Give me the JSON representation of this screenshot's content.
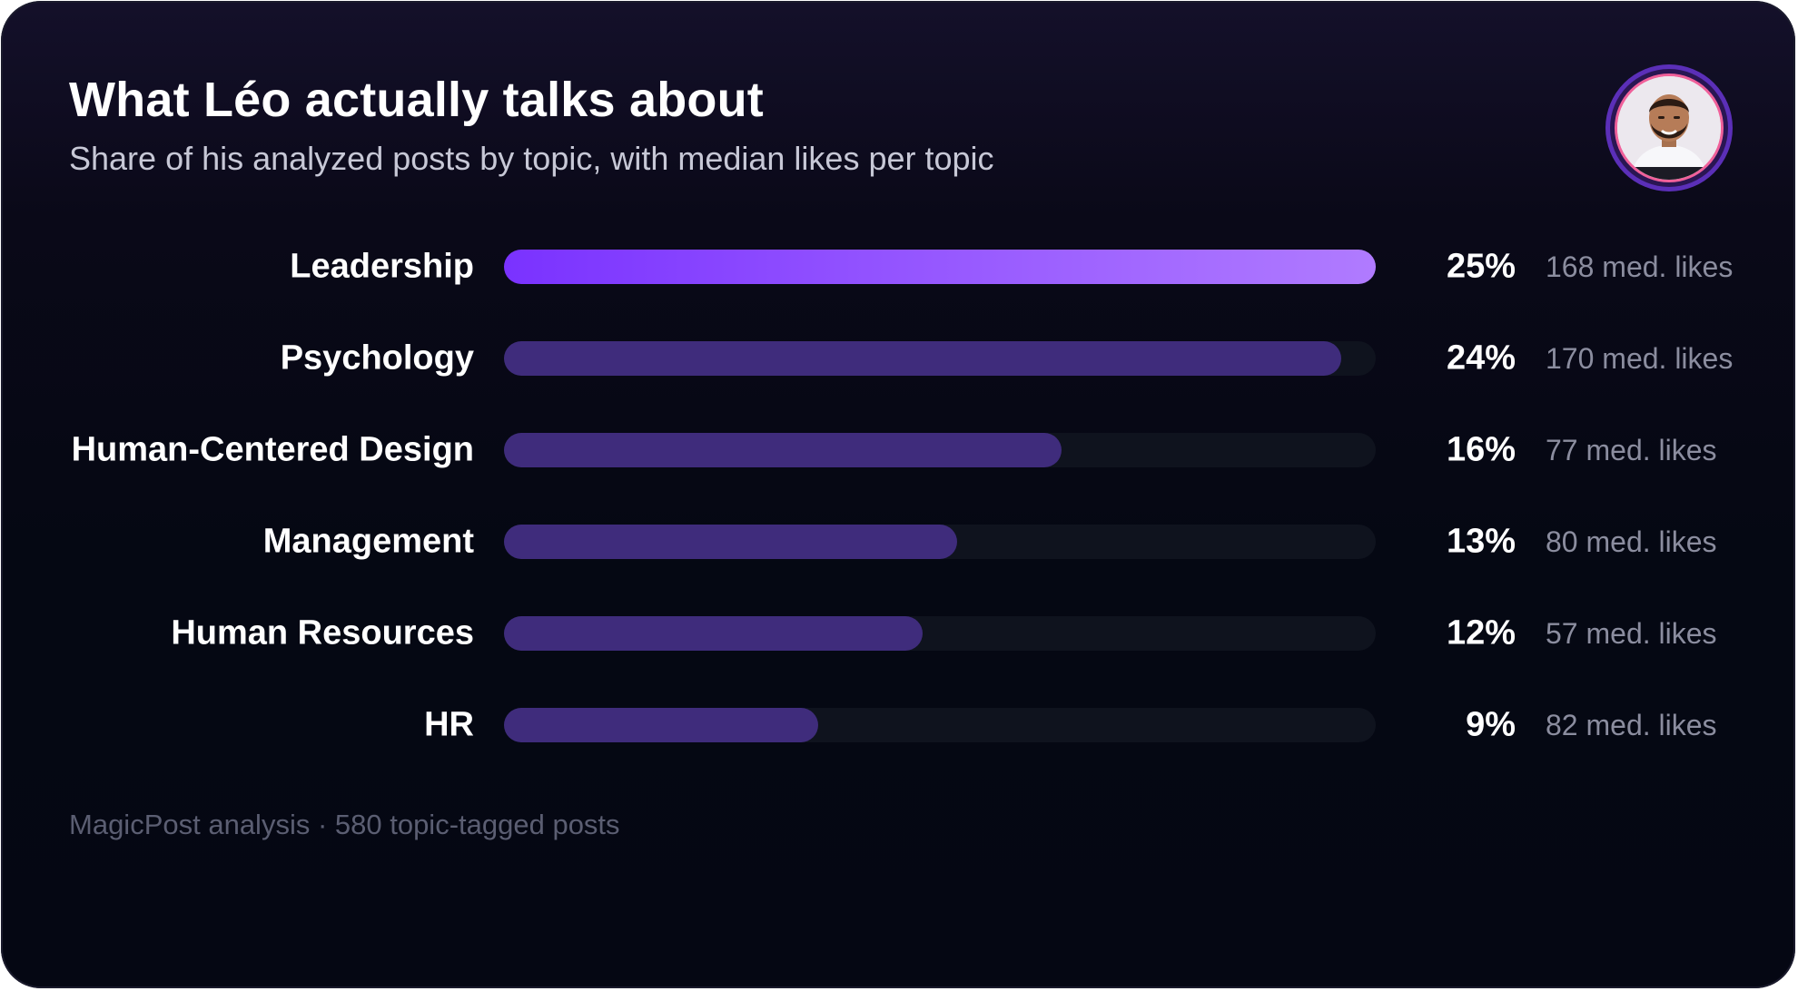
{
  "chart_data": {
    "type": "bar",
    "orientation": "horizontal",
    "title": "What Léo actually talks about",
    "subtitle": "Share of his analyzed posts by topic, with median likes per topic",
    "value_suffix": "%",
    "likes_suffix": " med. likes",
    "xlim": [
      0,
      25
    ],
    "categories": [
      "Leadership",
      "Psychology",
      "Human-Centered Design",
      "Management",
      "Human Resources",
      "HR"
    ],
    "values": [
      25,
      24,
      16,
      13,
      12,
      9
    ],
    "median_likes": [
      168,
      170,
      77,
      80,
      57,
      82
    ],
    "grid": false,
    "legend": "none"
  },
  "footer": "MagicPost analysis · 580 topic-tagged posts",
  "avatar": {
    "icon": "profile-photo-icon"
  },
  "colors": {
    "top_bar_start": "#7a32ff",
    "top_bar_end": "#b07bff",
    "bar": "#3f2c7c",
    "track": "#0f131e"
  }
}
